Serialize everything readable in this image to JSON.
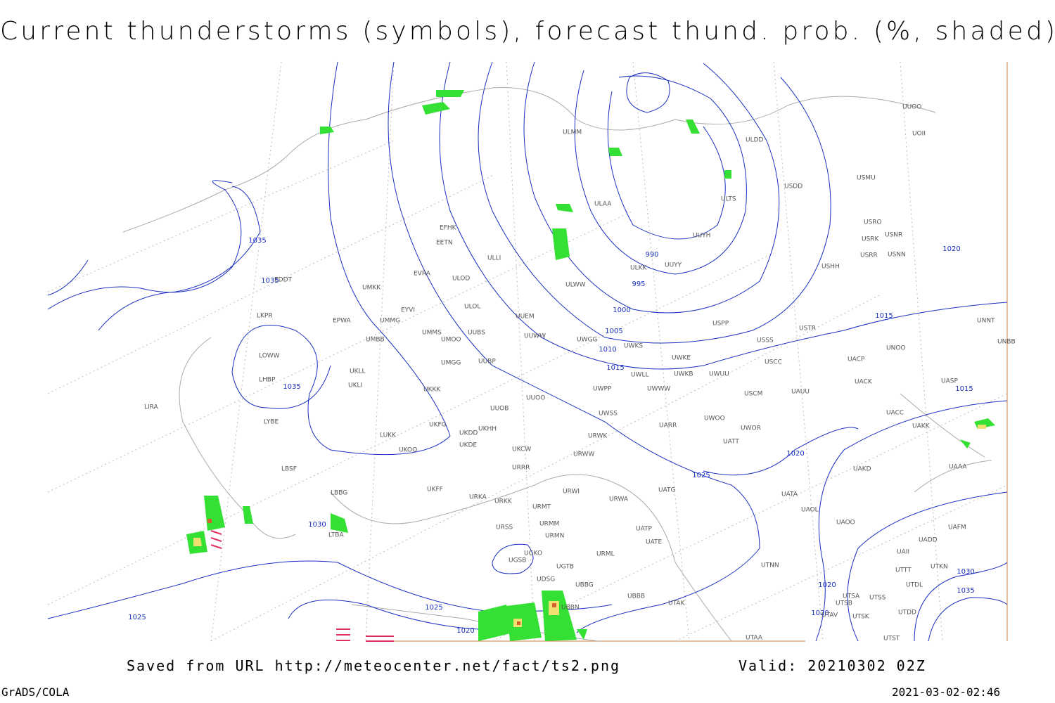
{
  "header": {
    "title": "Current thunderstorms (symbols), forecast thund. prob. (%, shaded)"
  },
  "map": {
    "isobar_labels": [
      1035,
      1035,
      1035,
      1030,
      1025,
      1025,
      1020,
      1020,
      1020,
      1025,
      1020,
      1015,
      1010,
      1005,
      1000,
      995,
      990,
      1015,
      1020,
      1015,
      1030,
      1035
    ],
    "stations": [
      "ULDD",
      "ULMM",
      "USDD",
      "USMU",
      "UUOO",
      "UOII",
      "ULAA",
      "ULTS",
      "USRO",
      "USRK",
      "USNR",
      "USRR",
      "USNN",
      "UUYH",
      "EFHK",
      "EETN",
      "ULLI",
      "ULKK",
      "UUYY",
      "USHH",
      "EVRA",
      "ULOD",
      "ULWW",
      "UMKK",
      "EDDT",
      "EYVI",
      "ULOL",
      "UUEM",
      "UMMG",
      "EPWA",
      "LKPR",
      "USPP",
      "USTR",
      "UMMS",
      "UMOO",
      "UUBS",
      "UUWW",
      "UWGG",
      "UWKS",
      "USSS",
      "UNNT",
      "UNBB",
      "UNOO",
      "UMBB",
      "LOWW",
      "UKLL",
      "UWKE",
      "UWKB",
      "UWUU",
      "USCC",
      "UACP",
      "UMGG",
      "UUBP",
      "UWLL",
      "UKLI",
      "LHBP",
      "UASP",
      "UACK",
      "USCM",
      "UAUU",
      "UWPP",
      "UWWW",
      "UKKK",
      "UUOO",
      "LIRA",
      "UUOB",
      "UWSS",
      "UACC",
      "LYBE",
      "UKFG",
      "UKHH",
      "UKDD",
      "LUKK",
      "UARR",
      "UWOO",
      "UWOR",
      "UAKK",
      "URWK",
      "UATT",
      "UKDE",
      "UKCW",
      "UKOO",
      "URWW",
      "UAKD",
      "UAAA",
      "LBSF",
      "URRR",
      "UKFF",
      "URWI",
      "UATG",
      "LBBG",
      "URKA",
      "URKK",
      "URWA",
      "UATA",
      "URMT",
      "UAOL",
      "UAOO",
      "LTBA",
      "URMM",
      "URSS",
      "UATP",
      "UAFM",
      "URMN",
      "UATE",
      "UADD",
      "UGKO",
      "UGSB",
      "URML",
      "UAII",
      "UGTB",
      "UTTT",
      "UTKN",
      "UTNN",
      "UDSG",
      "UTDL",
      "UBBG",
      "UBBB",
      "UTSA",
      "UTSS",
      "UTSB",
      "UTAK",
      "UTSK",
      "UTDD",
      "UTAV",
      "UTST",
      "UTAA",
      "UBBN"
    ]
  },
  "footer": {
    "source": "Saved from URL http://meteocenter.net/fact/ts2.png",
    "valid": "Valid: 20210302 02Z",
    "software": "GrADS/COLA",
    "timestamp": "2021-03-02-02:46"
  }
}
